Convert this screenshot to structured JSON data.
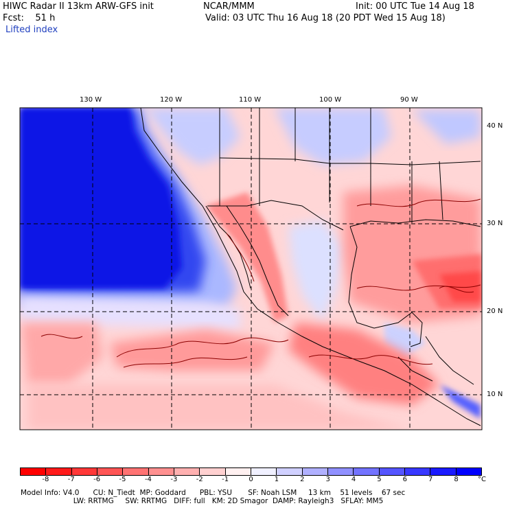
{
  "header": {
    "title_left": "HIWC Radar II 13km ARW-GFS init",
    "source": "NCAR/MMM",
    "init": "Init: 00 UTC Tue 14 Aug 18",
    "fcst": "Fcst:    51 h",
    "valid": "Valid: 03 UTC Thu 16 Aug 18 (20 PDT Wed 15 Aug 18)",
    "field": "Lifted index"
  },
  "axes": {
    "lon_labels": [
      "130 W",
      "120 W",
      "110 W",
      "100 W",
      "90 W"
    ],
    "lat_labels": [
      "40 N",
      "30 N",
      "20 N",
      "10 N"
    ]
  },
  "colorbar": {
    "labels": [
      "-8",
      "-7",
      "-6",
      "-5",
      "-4",
      "-3",
      "-2",
      "-1",
      "0",
      "1",
      "2",
      "3",
      "4",
      "5",
      "6",
      "7",
      "8"
    ],
    "unit": "°C",
    "colors": [
      "#ff0000",
      "#ff1a1a",
      "#ff3838",
      "#ff5555",
      "#ff7373",
      "#ff9090",
      "#ffb0b0",
      "#ffd0d0",
      "#fff0f0",
      "#f0f0ff",
      "#d0d0ff",
      "#b0b0ff",
      "#9090ff",
      "#7373ff",
      "#5555ff",
      "#3838ff",
      "#1a1aff",
      "#0000ff"
    ]
  },
  "footer": {
    "line1": "Model Info: V4.0      CU: N_Tiedt  MP: Goddard      PBL: YSU       SF: Noah LSM     13 km    51 levels    67 sec",
    "line2": "                       LW: RRTMG     SW: RRTMG   DIFF: full   KM: 2D Smagor  DAMP: Rayleigh3   SFLAY: MM5"
  }
}
